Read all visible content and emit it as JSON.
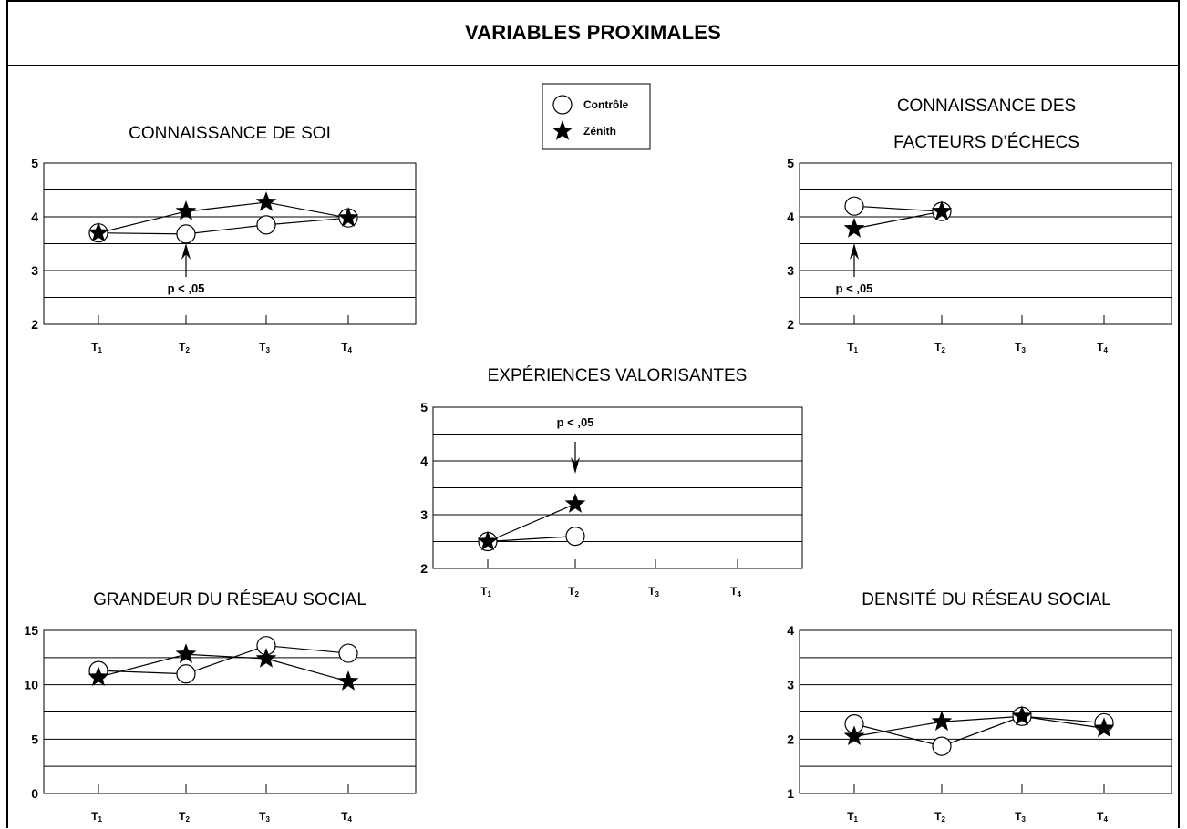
{
  "title": "VARIABLES PROXIMALES",
  "legend": {
    "items": [
      {
        "name": "Contrôle",
        "marker": "circle"
      },
      {
        "name": "Zénith",
        "marker": "star"
      }
    ]
  },
  "chart_data": [
    {
      "id": "soi",
      "type": "line",
      "title_lines": [
        "CONNAISSANCE DE SOI"
      ],
      "categories": [
        "T1",
        "T2",
        "T3",
        "T4"
      ],
      "ylim": [
        2,
        5
      ],
      "yticks": [
        2,
        3,
        4,
        5
      ],
      "grid_step": 0.5,
      "series": [
        {
          "name": "Contrôle",
          "marker": "circle",
          "values": [
            3.7,
            3.68,
            3.85,
            3.98
          ]
        },
        {
          "name": "Zénith",
          "marker": "star",
          "values": [
            3.7,
            4.1,
            4.27,
            3.98
          ]
        }
      ],
      "annotation": {
        "text": "p < ,05",
        "category": 1,
        "direction": "up"
      }
    },
    {
      "id": "echecs",
      "type": "line",
      "title_lines": [
        "CONNAISSANCE DES",
        "FACTEURS D’ÉCHECS"
      ],
      "categories": [
        "T1",
        "T2",
        "T3",
        "T4"
      ],
      "ylim": [
        2,
        5
      ],
      "yticks": [
        2,
        3,
        4,
        5
      ],
      "grid_step": 0.5,
      "series": [
        {
          "name": "Contrôle",
          "marker": "circle",
          "values": [
            4.2,
            4.1,
            null,
            null
          ]
        },
        {
          "name": "Zénith",
          "marker": "star",
          "values": [
            3.78,
            4.1,
            null,
            null
          ]
        }
      ],
      "annotation": {
        "text": "p < ,05",
        "category": 0,
        "direction": "up"
      }
    },
    {
      "id": "experiences",
      "type": "line",
      "title_lines": [
        "EXPÉRIENCES VALORISANTES"
      ],
      "categories": [
        "T1",
        "T2",
        "T3",
        "T4"
      ],
      "ylim": [
        2,
        5
      ],
      "yticks": [
        2,
        3,
        4,
        5
      ],
      "grid_step": 0.5,
      "series": [
        {
          "name": "Contrôle",
          "marker": "circle",
          "values": [
            2.5,
            2.6,
            null,
            null
          ]
        },
        {
          "name": "Zénith",
          "marker": "star",
          "values": [
            2.5,
            3.2,
            null,
            null
          ]
        }
      ],
      "annotation": {
        "text": "p < ,05",
        "category": 1,
        "direction": "down"
      }
    },
    {
      "id": "grandeur",
      "type": "line",
      "title_lines": [
        "GRANDEUR DU RÉSEAU SOCIAL"
      ],
      "categories": [
        "T1",
        "T2",
        "T3",
        "T4"
      ],
      "ylim": [
        0,
        15
      ],
      "yticks": [
        0,
        5,
        10,
        15
      ],
      "grid_step": 2.5,
      "series": [
        {
          "name": "Contrôle",
          "marker": "circle",
          "values": [
            11.3,
            11.0,
            13.6,
            12.9
          ]
        },
        {
          "name": "Zénith",
          "marker": "star",
          "values": [
            10.7,
            12.8,
            12.4,
            10.3
          ]
        }
      ]
    },
    {
      "id": "densite",
      "type": "line",
      "title_lines": [
        "DENSITÉ DU RÉSEAU SOCIAL"
      ],
      "categories": [
        "T1",
        "T2",
        "T3",
        "T4"
      ],
      "ylim": [
        1,
        4
      ],
      "yticks": [
        1,
        2,
        3,
        4
      ],
      "grid_step": 0.5,
      "series": [
        {
          "name": "Contrôle",
          "marker": "circle",
          "values": [
            2.28,
            1.87,
            2.42,
            2.3
          ]
        },
        {
          "name": "Zénith",
          "marker": "star",
          "values": [
            2.05,
            2.32,
            2.42,
            2.2
          ]
        }
      ]
    }
  ]
}
